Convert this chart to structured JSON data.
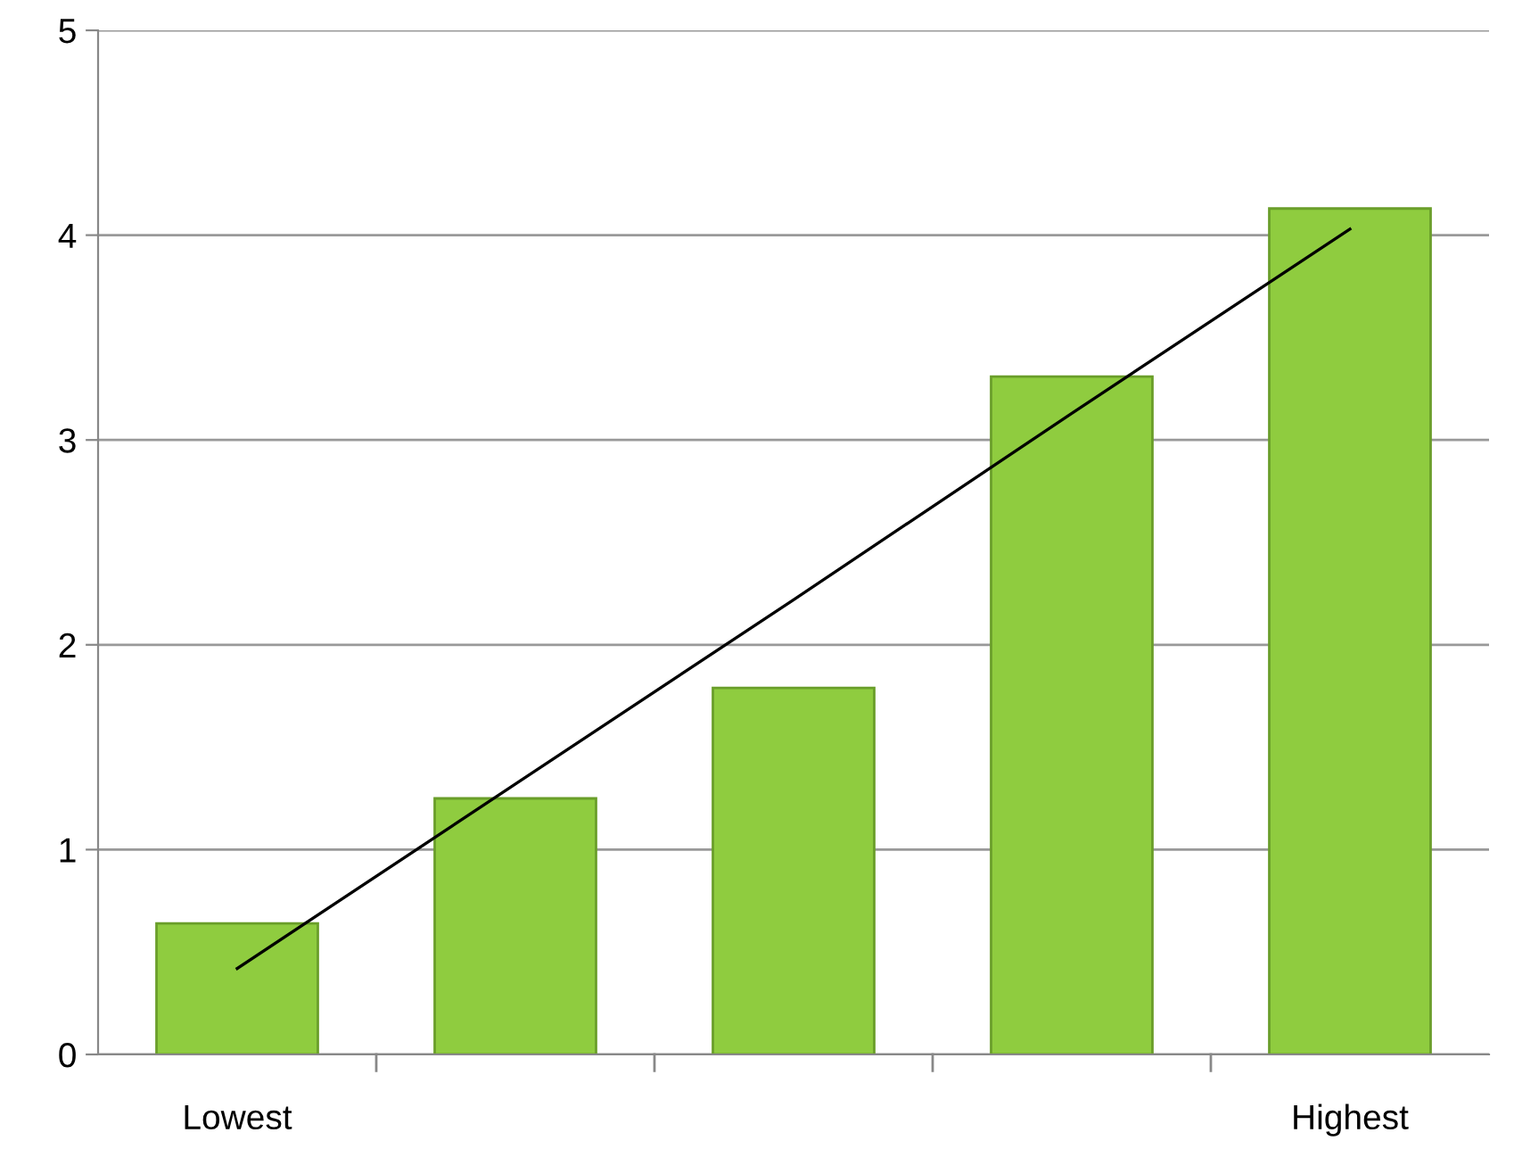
{
  "chart_data": {
    "type": "bar",
    "categories": [
      "Lowest",
      null,
      null,
      null,
      "Highest"
    ],
    "series": [
      {
        "color": "#8fcc3f",
        "values": [
          0.64,
          1.25,
          1.79,
          3.31,
          4.13
        ]
      },
      {
        "type": "line",
        "color": "#000000",
        "values": [
          0.42,
          1.32,
          2.22,
          3.13,
          4.03
        ]
      }
    ],
    "ylim": [
      0,
      5
    ],
    "yticks": [
      0,
      1,
      2,
      3,
      4,
      5
    ],
    "grid": "y",
    "legend": false,
    "marker": "none",
    "line_style": "solid"
  }
}
